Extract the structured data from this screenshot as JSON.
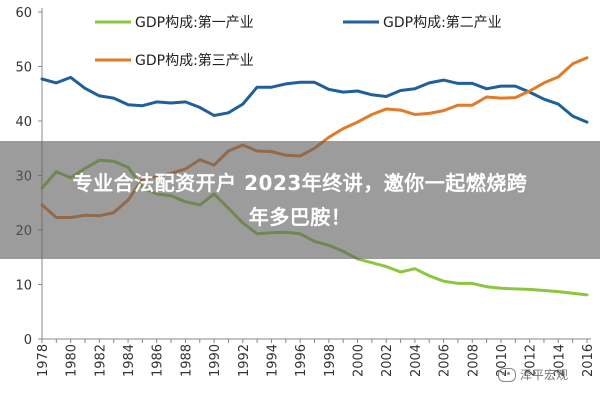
{
  "chart_data": {
    "type": "line",
    "title": "",
    "xlabel": "",
    "ylabel": "",
    "ylim": [
      0,
      60
    ],
    "yticks": [
      0,
      10,
      20,
      30,
      40,
      50,
      60
    ],
    "x": [
      1978,
      1979,
      1980,
      1981,
      1982,
      1983,
      1984,
      1985,
      1986,
      1987,
      1988,
      1989,
      1990,
      1991,
      1992,
      1993,
      1994,
      1995,
      1996,
      1997,
      1998,
      1999,
      2000,
      2001,
      2002,
      2003,
      2004,
      2005,
      2006,
      2007,
      2008,
      2009,
      2010,
      2011,
      2012,
      2013,
      2014,
      2015,
      2016
    ],
    "xticks": [
      "1978",
      "1980",
      "1982",
      "1984",
      "1986",
      "1988",
      "1990",
      "1992",
      "1994",
      "1996",
      "1998",
      "2000",
      "2002",
      "2004",
      "2006",
      "2008",
      "2010",
      "2012",
      "2014",
      "2016"
    ],
    "legend": "top",
    "grid": false,
    "series": [
      {
        "name": "GDP构成:第一产业",
        "color": "#8cc63f",
        "values": [
          27.7,
          30.7,
          29.6,
          31.3,
          32.8,
          32.6,
          31.5,
          27.9,
          26.6,
          26.3,
          25.2,
          24.6,
          26.6,
          24.0,
          21.3,
          19.3,
          19.5,
          19.6,
          19.3,
          17.9,
          17.2,
          16.1,
          14.7,
          14.0,
          13.3,
          12.3,
          12.9,
          11.6,
          10.6,
          10.2,
          10.2,
          9.6,
          9.3,
          9.2,
          9.1,
          8.9,
          8.7,
          8.4,
          8.1
        ]
      },
      {
        "name": "GDP构成:第二产业",
        "color": "#1f5f9a",
        "values": [
          47.7,
          47.0,
          48.0,
          46.0,
          44.6,
          44.2,
          43.0,
          42.8,
          43.5,
          43.3,
          43.5,
          42.5,
          41.0,
          41.5,
          43.1,
          46.2,
          46.2,
          46.8,
          47.1,
          47.1,
          45.8,
          45.3,
          45.5,
          44.8,
          44.5,
          45.6,
          45.9,
          47.0,
          47.5,
          46.9,
          46.9,
          45.9,
          46.4,
          46.4,
          45.3,
          44.0,
          43.1,
          40.9,
          39.8
        ]
      },
      {
        "name": "GDP构成:第三产业",
        "color": "#e07b2a",
        "values": [
          24.6,
          22.3,
          22.3,
          22.7,
          22.6,
          23.2,
          25.5,
          29.3,
          29.8,
          30.4,
          31.2,
          32.9,
          31.9,
          34.5,
          35.6,
          34.5,
          34.4,
          33.7,
          33.6,
          35.0,
          37.0,
          38.6,
          39.8,
          41.2,
          42.2,
          42.0,
          41.2,
          41.4,
          41.9,
          42.9,
          42.9,
          44.4,
          44.2,
          44.3,
          45.5,
          47.0,
          48.1,
          50.5,
          51.6
        ]
      }
    ]
  },
  "banner": {
    "line1": "专业合法配资开户 2023年终讲，邀你一起燃烧跨",
    "line2": "年多巴胺！"
  },
  "watermark": {
    "text": "泽平宏观"
  }
}
